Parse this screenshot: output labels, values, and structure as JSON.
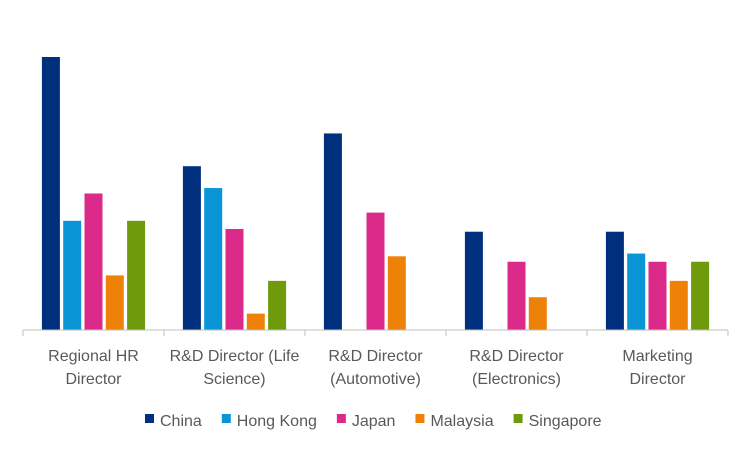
{
  "chart_data": {
    "type": "bar",
    "categories": [
      [
        "Regional HR",
        "Director"
      ],
      [
        "R&D Director (Life",
        "Science)"
      ],
      [
        "R&D Director",
        "(Automotive)"
      ],
      [
        "R&D Director",
        "(Electronics)"
      ],
      [
        "Marketing",
        "Director"
      ]
    ],
    "series": [
      {
        "name": "China",
        "color": "#002F7E",
        "values": [
          100,
          60,
          72,
          36,
          36
        ]
      },
      {
        "name": "Hong Kong",
        "color": "#0A96D6",
        "values": [
          40,
          52,
          null,
          null,
          28
        ]
      },
      {
        "name": "Japan",
        "color": "#DC2A8A",
        "values": [
          50,
          37,
          43,
          25,
          25
        ]
      },
      {
        "name": "Malaysia",
        "color": "#EE8208",
        "values": [
          20,
          6,
          27,
          12,
          18
        ]
      },
      {
        "name": "Singapore",
        "color": "#6F9A0C",
        "values": [
          40,
          18,
          null,
          null,
          25
        ]
      }
    ],
    "ylim": [
      0,
      100
    ],
    "grid": false,
    "legend_position": "bottom",
    "title": "",
    "xlabel": "",
    "ylabel": "",
    "axis_color": "#BFBFBF"
  }
}
